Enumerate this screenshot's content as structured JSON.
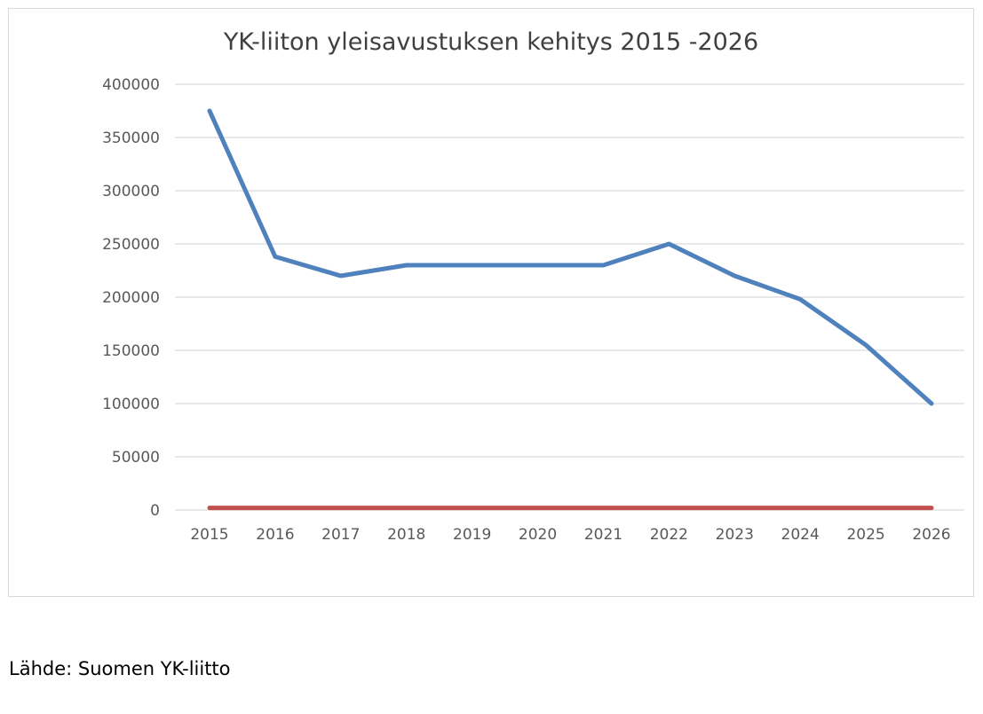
{
  "chart_data": {
    "type": "line",
    "title": "YK-liiton yleisavustuksen kehitys 2015 -2026",
    "xlabel": "",
    "ylabel": "",
    "categories": [
      "2015",
      "2016",
      "2017",
      "2018",
      "2019",
      "2020",
      "2021",
      "2022",
      "2023",
      "2024",
      "2025",
      "2026"
    ],
    "ylim": [
      0,
      400000
    ],
    "yticks": [
      "0",
      "50000",
      "100000",
      "150000",
      "200000",
      "250000",
      "300000",
      "350000",
      "400000"
    ],
    "grid": true,
    "legend": "none",
    "series": [
      {
        "color": "#4f81bd",
        "values": [
          375000,
          238000,
          220000,
          230000,
          230000,
          230000,
          230000,
          250000,
          220000,
          198000,
          155000,
          100000
        ]
      },
      {
        "color": "#c0504d",
        "values": [
          2000,
          2000,
          2000,
          2000,
          2000,
          2000,
          2000,
          2000,
          2000,
          2000,
          2000,
          2000
        ]
      }
    ]
  },
  "source": "Lähde: Suomen YK-liitto",
  "colors": {
    "grid": "#d9d9d9",
    "axis_text": "#595959",
    "title": "#404040"
  }
}
